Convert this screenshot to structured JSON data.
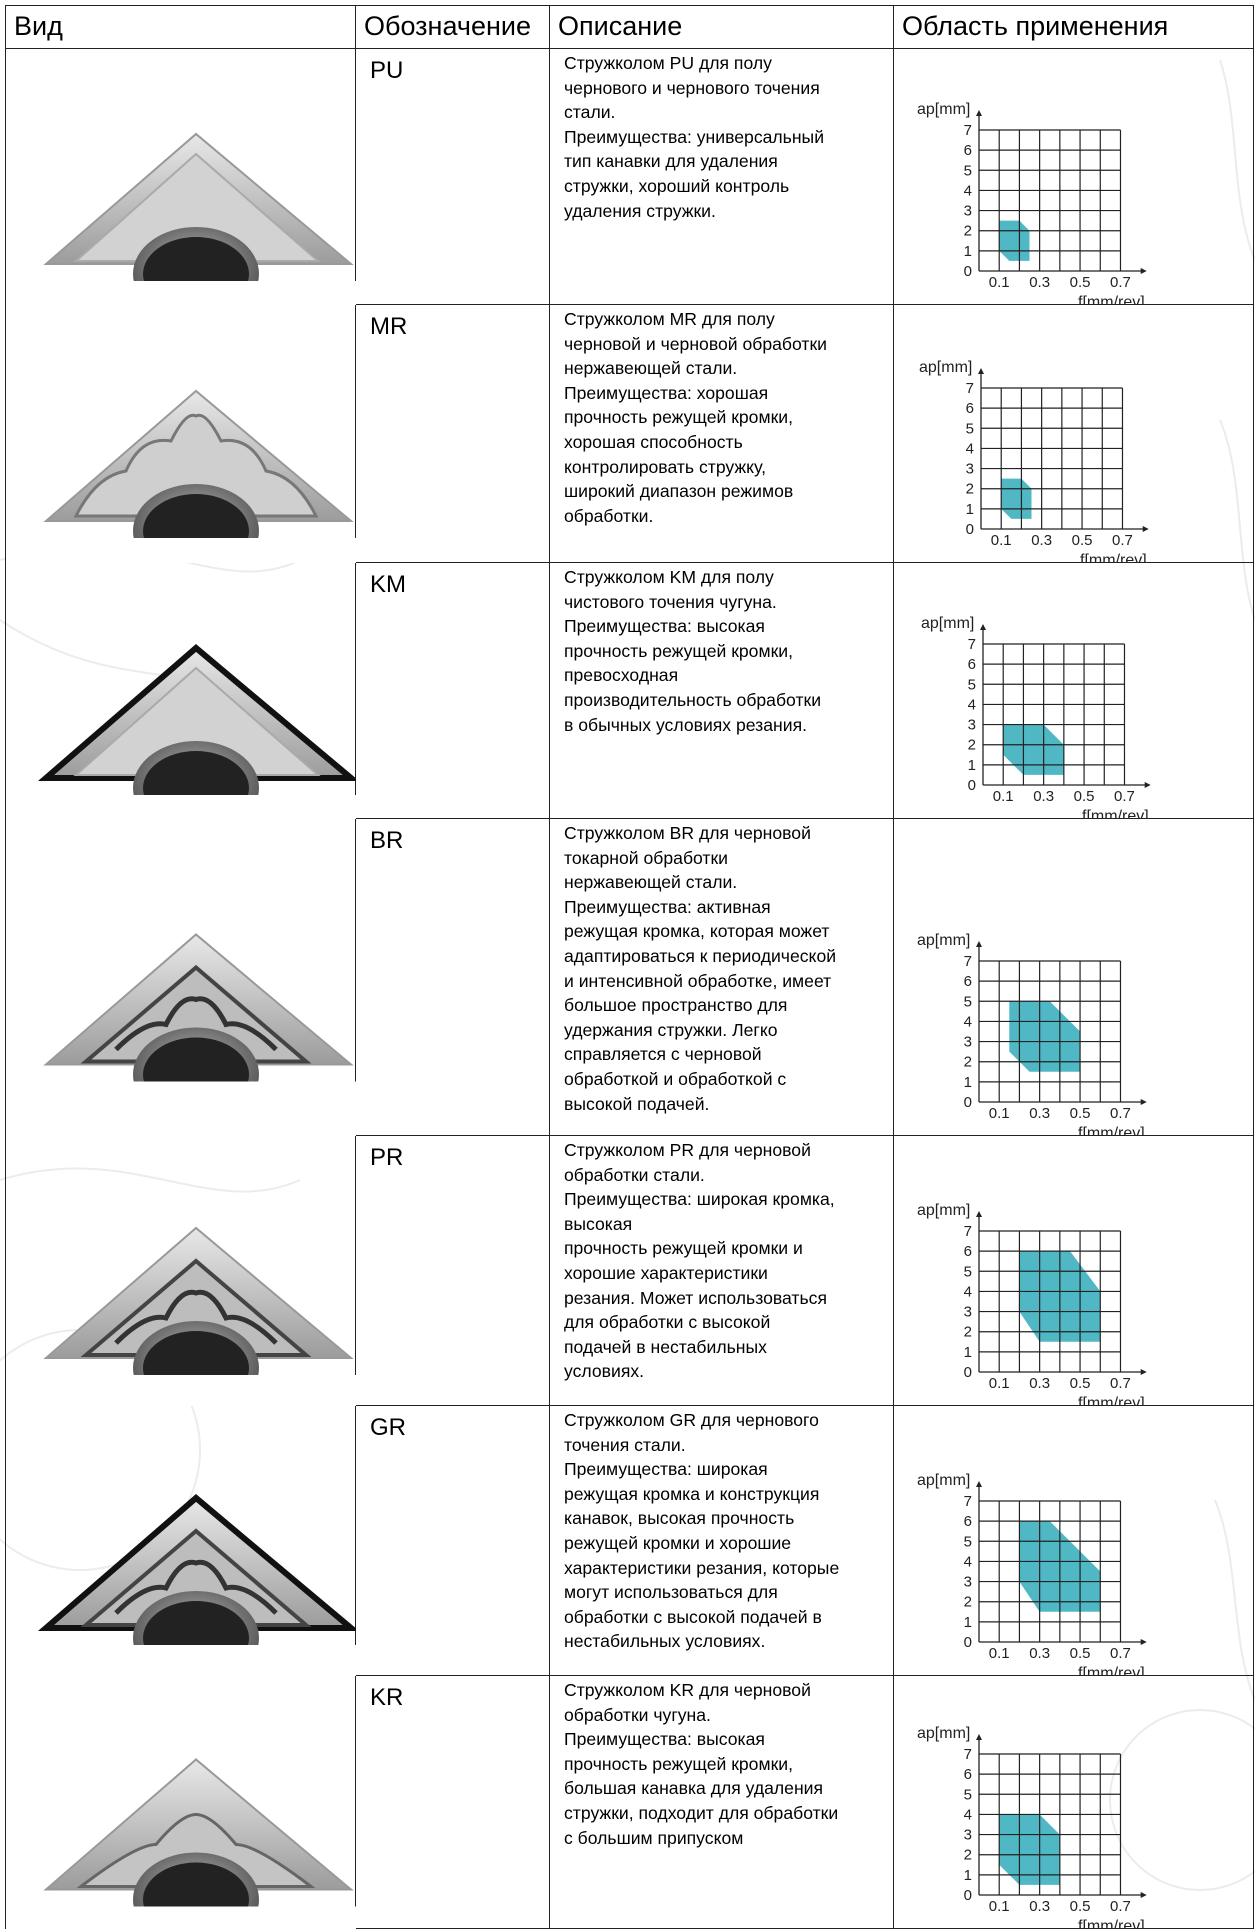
{
  "table": {
    "headers": {
      "view": "Вид",
      "code": "Обозначение",
      "description": "Описание",
      "area": "Область применения"
    },
    "axis": {
      "y_label": "ap[mm]",
      "x_label": "f[mm/rev]",
      "y_ticks": [
        "0",
        "1",
        "2",
        "3",
        "4",
        "5",
        "6",
        "7"
      ],
      "x_ticks": [
        "0.1",
        "0.3",
        "0.5",
        "0.7"
      ]
    },
    "rows": [
      {
        "code": "PU",
        "description_lines": [
          "Стружколом PU для полу",
          "чернового и чернового точения",
          "стали.",
          "Преимущества: универсальный",
          "тип канавки для удаления",
          "стружки, хороший контроль",
          "удаления стружки."
        ]
      },
      {
        "code": "MR",
        "description_lines": [
          "Стружколом MR для полу",
          "черновой и черновой обработки",
          "нержавеющей стали.",
          "Преимущества: хорошая",
          "прочность режущей кромки,",
          "хорошая способность",
          "контролировать стружку,",
          "широкий диапазон режимов",
          "обработки."
        ]
      },
      {
        "code": "KM",
        "description_lines": [
          "Стружколом KM для полу",
          "чистового точения чугуна.",
          "Преимущества: высокая",
          "прочность режущей кромки,",
          "превосходная",
          "производительность обработки",
          "в обычных условиях резания."
        ]
      },
      {
        "code": "BR",
        "description_lines": [
          "Стружколом BR для черновой",
          "токарной обработки",
          "нержавеющей стали.",
          "Преимущества: активная",
          "режущая кромка, которая может",
          "адаптироваться к периодической",
          "и интенсивной обработке, имеет",
          "большое пространство для",
          "удержания стружки. Легко",
          "справляется с черновой",
          "обработкой и обработкой с",
          "высокой подачей."
        ]
      },
      {
        "code": "PR",
        "description_lines": [
          "Стружколом PR для черновой",
          "обработки стали.",
          "Преимущества: широкая кромка,",
          "высокая",
          "прочность режущей кромки и",
          "хорошие характеристики",
          "резания. Может использоваться",
          "для обработки с высокой",
          "подачей в нестабильных",
          "условиях."
        ]
      },
      {
        "code": "GR",
        "description_lines": [
          "Стружколом GR для чернового",
          "точения стали.",
          "Преимущества: широкая",
          "режущая кромка и конструкция",
          "канавок, высокая прочность",
          "режущей кромки и хорошие",
          "характеристики резания, которые",
          "могут использоваться для",
          "обработки с высокой подачей в",
          "нестабильных условиях."
        ]
      },
      {
        "code": "KR",
        "description_lines": [
          "Стружколом KR для черновой",
          "обработки чугуна.",
          "Преимущества: высокая",
          "прочность режущей кромки,",
          "большая канавка для удаления",
          "стружки, подходит для обработки",
          "с большим припуском"
        ]
      }
    ]
  },
  "chart_data": [
    {
      "type": "area",
      "name": "PU",
      "xlabel": "f[mm/rev]",
      "ylabel": "ap[mm]",
      "xlim": [
        0,
        0.8
      ],
      "ylim": [
        0,
        7
      ],
      "fill": "#4fb8c4",
      "polygon": [
        [
          0.1,
          2.5
        ],
        [
          0.2,
          2.5
        ],
        [
          0.25,
          2.0
        ],
        [
          0.25,
          0.5
        ],
        [
          0.15,
          0.5
        ],
        [
          0.1,
          1.0
        ]
      ]
    },
    {
      "type": "area",
      "name": "MR",
      "xlabel": "f[mm/rev]",
      "ylabel": "ap[mm]",
      "xlim": [
        0,
        0.8
      ],
      "ylim": [
        0,
        7
      ],
      "fill": "#4fb8c4",
      "polygon": [
        [
          0.1,
          2.5
        ],
        [
          0.2,
          2.5
        ],
        [
          0.25,
          2.0
        ],
        [
          0.25,
          0.5
        ],
        [
          0.15,
          0.5
        ],
        [
          0.1,
          1.0
        ]
      ]
    },
    {
      "type": "area",
      "name": "KM",
      "xlabel": "f[mm/rev]",
      "ylabel": "ap[mm]",
      "xlim": [
        0,
        0.8
      ],
      "ylim": [
        0,
        7
      ],
      "fill": "#4fb8c4",
      "polygon": [
        [
          0.1,
          3.0
        ],
        [
          0.3,
          3.0
        ],
        [
          0.4,
          2.0
        ],
        [
          0.4,
          0.5
        ],
        [
          0.2,
          0.5
        ],
        [
          0.1,
          1.5
        ]
      ]
    },
    {
      "type": "area",
      "name": "BR",
      "xlabel": "f[mm/rev]",
      "ylabel": "ap[mm]",
      "xlim": [
        0,
        0.8
      ],
      "ylim": [
        0,
        7
      ],
      "fill": "#4fb8c4",
      "polygon": [
        [
          0.15,
          5.0
        ],
        [
          0.35,
          5.0
        ],
        [
          0.5,
          3.5
        ],
        [
          0.5,
          1.5
        ],
        [
          0.25,
          1.5
        ],
        [
          0.15,
          2.5
        ]
      ]
    },
    {
      "type": "area",
      "name": "PR",
      "xlabel": "f[mm/rev]",
      "ylabel": "ap[mm]",
      "xlim": [
        0,
        0.8
      ],
      "ylim": [
        0,
        7
      ],
      "fill": "#4fb8c4",
      "polygon": [
        [
          0.2,
          6.0
        ],
        [
          0.45,
          6.0
        ],
        [
          0.6,
          4.0
        ],
        [
          0.6,
          1.5
        ],
        [
          0.3,
          1.5
        ],
        [
          0.2,
          3.0
        ]
      ]
    },
    {
      "type": "area",
      "name": "GR",
      "xlabel": "f[mm/rev]",
      "ylabel": "ap[mm]",
      "xlim": [
        0,
        0.8
      ],
      "ylim": [
        0,
        7
      ],
      "fill": "#4fb8c4",
      "polygon": [
        [
          0.2,
          6.0
        ],
        [
          0.35,
          6.0
        ],
        [
          0.6,
          3.5
        ],
        [
          0.6,
          1.5
        ],
        [
          0.3,
          1.5
        ],
        [
          0.2,
          3.0
        ]
      ]
    },
    {
      "type": "area",
      "name": "KR",
      "xlabel": "f[mm/rev]",
      "ylabel": "ap[mm]",
      "xlim": [
        0,
        0.8
      ],
      "ylim": [
        0,
        7
      ],
      "fill": "#4fb8c4",
      "polygon": [
        [
          0.1,
          4.0
        ],
        [
          0.3,
          4.0
        ],
        [
          0.4,
          3.0
        ],
        [
          0.4,
          0.5
        ],
        [
          0.2,
          0.5
        ],
        [
          0.1,
          1.5
        ]
      ]
    }
  ]
}
